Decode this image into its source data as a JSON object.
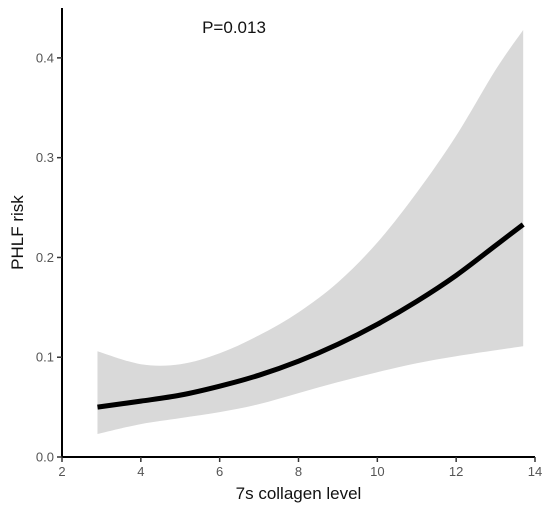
{
  "chart_data": {
    "type": "line",
    "title": "",
    "annotation": "P=0.013",
    "xlabel": "7s collagen level",
    "ylabel": "PHLF risk",
    "xlim": [
      2,
      14
    ],
    "ylim": [
      0,
      0.45
    ],
    "xticks": [
      2,
      4,
      6,
      8,
      10,
      12,
      14
    ],
    "yticks": [
      0.0,
      0.1,
      0.2,
      0.3,
      0.4
    ],
    "xtick_labels": [
      "2",
      "4",
      "6",
      "8",
      "10",
      "12",
      "14"
    ],
    "ytick_labels": [
      "0.0",
      "0.1",
      "0.2",
      "0.3",
      "0.4"
    ],
    "grid": false,
    "legend": "none",
    "series": [
      {
        "x": [
          2.9,
          4,
          5,
          6,
          7,
          8,
          9,
          10,
          11,
          12,
          13,
          13.7
        ],
        "y": [
          0.05,
          0.056,
          0.062,
          0.071,
          0.082,
          0.096,
          0.113,
          0.133,
          0.156,
          0.182,
          0.212,
          0.233
        ],
        "lower": [
          0.023,
          0.033,
          0.039,
          0.045,
          0.053,
          0.064,
          0.075,
          0.085,
          0.094,
          0.101,
          0.107,
          0.111
        ],
        "upper": [
          0.106,
          0.093,
          0.093,
          0.104,
          0.122,
          0.145,
          0.175,
          0.215,
          0.265,
          0.322,
          0.388,
          0.428
        ]
      }
    ],
    "colors": {
      "line": "#000000",
      "band": "#d9d9d9",
      "axis": "#000000"
    }
  }
}
